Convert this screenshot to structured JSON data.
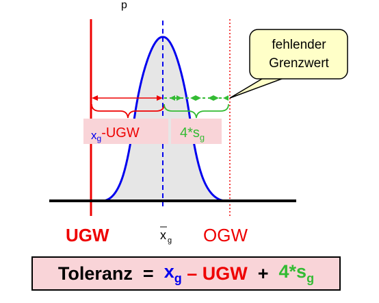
{
  "header_fragment": "p",
  "labels": {
    "ugw": "UGW",
    "ogw": "OGW",
    "xbar_main": "x",
    "xbar_sub": "g",
    "box_left_main": "-UGW",
    "box_left_x": "x",
    "box_left_sub": "g",
    "box_right_main": "4*s",
    "box_right_sub": "g"
  },
  "callout": {
    "line1": "fehlender",
    "line2": "Grenzwert"
  },
  "formula": {
    "part1": "Toleranz  =  ",
    "x": "x",
    "x_sub": "g",
    "part2": " – UGW  +  ",
    "s": "4*s",
    "s_sub": "g"
  },
  "colors": {
    "red": "#ee0000",
    "green": "#33bb33",
    "blue": "#0000ee",
    "curve_fill": "#e6e6e6",
    "box_fill": "#f9d4d8",
    "callout_fill": "#ffffc8"
  }
}
